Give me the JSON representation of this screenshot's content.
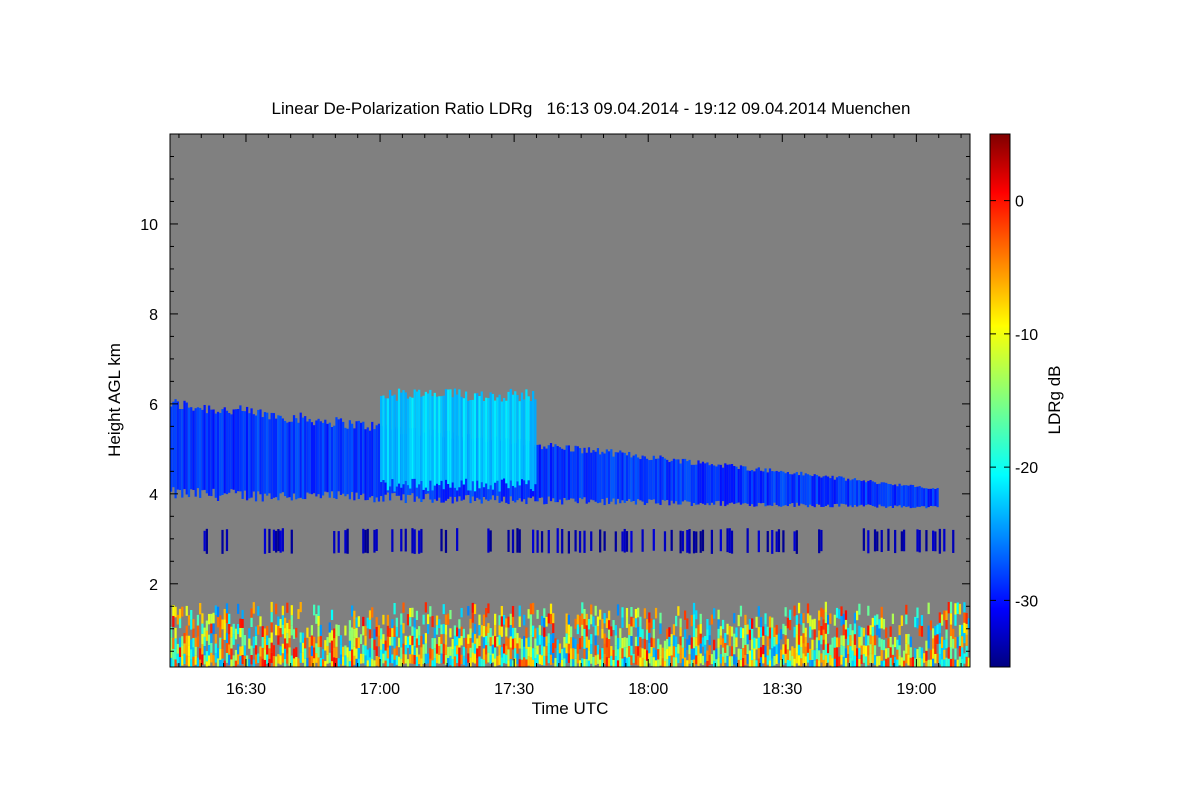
{
  "chart_data": {
    "type": "heatmap",
    "title": "Linear De-Polarization Ratio LDRg   16:13 09.04.2014 - 19:12 09.04.2014 Muenchen",
    "xlabel": "Time UTC",
    "ylabel": "Height AGL km",
    "colorbar_label": "LDRg dB",
    "x_range": [
      "16:13",
      "19:12"
    ],
    "x_range_minutes": [
      973,
      1152
    ],
    "x_ticks": [
      {
        "label": "16:30",
        "minute": 990
      },
      {
        "label": "17:00",
        "minute": 1020
      },
      {
        "label": "17:30",
        "minute": 1050
      },
      {
        "label": "18:00",
        "minute": 1080
      },
      {
        "label": "18:30",
        "minute": 1110
      },
      {
        "label": "19:00",
        "minute": 1140
      }
    ],
    "ylim": [
      0.15,
      12.0
    ],
    "y_ticks": [
      2,
      4,
      6,
      8,
      10
    ],
    "colorbar_range": [
      -35,
      5
    ],
    "colorbar_ticks": [
      0,
      -10,
      -20,
      -30
    ],
    "colormap": "jet",
    "no_data_color": "#808080",
    "features": [
      {
        "name": "ice cloud layer",
        "start": "16:13",
        "end": "19:05",
        "base_km_start": 4.0,
        "top_km_start": 6.0,
        "base_km_end": 3.7,
        "top_km_end": 4.1,
        "ldr_db": -28
      },
      {
        "name": "fall streak region",
        "start": "17:00",
        "end": "17:35",
        "base_km": 4.2,
        "top_km": 6.2,
        "ldr_db": -22
      },
      {
        "name": "thin low layer",
        "start": "16:20",
        "end": "19:12",
        "base_km": 2.7,
        "top_km": 3.2,
        "ldr_db": -33
      },
      {
        "name": "boundary layer aerosol",
        "start": "16:13",
        "end": "19:12",
        "base_km": 0.15,
        "top_km": 1.5,
        "ldr_db_range": [
          -25,
          0
        ]
      }
    ]
  },
  "colors": {
    "background": "#ffffff",
    "plot_background": "#808080"
  }
}
